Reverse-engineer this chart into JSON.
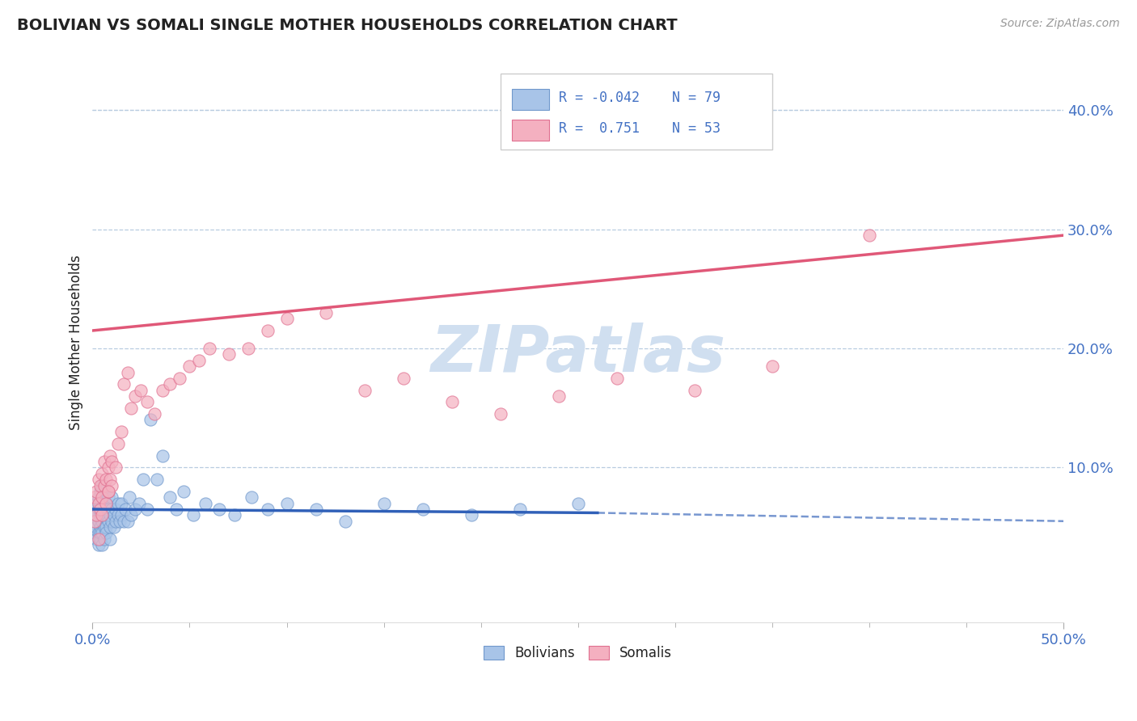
{
  "title": "BOLIVIAN VS SOMALI SINGLE MOTHER HOUSEHOLDS CORRELATION CHART",
  "source": "Source: ZipAtlas.com",
  "ylabel": "Single Mother Households",
  "xlim": [
    0.0,
    0.5
  ],
  "ylim": [
    -0.03,
    0.44
  ],
  "xtick_positions": [
    0.0,
    0.5
  ],
  "xtick_labels": [
    "0.0%",
    "50.0%"
  ],
  "yticks_right": [
    0.1,
    0.2,
    0.3,
    0.4
  ],
  "bolivian_R": -0.042,
  "bolivian_N": 79,
  "somali_R": 0.751,
  "somali_N": 53,
  "bolivian_color": "#a8c4e8",
  "somali_color": "#f4b0c0",
  "bolivian_edge_color": "#7098cc",
  "somali_edge_color": "#e07090",
  "bolivian_line_color": "#3060b8",
  "somali_line_color": "#e05878",
  "background_color": "#ffffff",
  "grid_color": "#b8cce0",
  "title_color": "#222222",
  "axis_label_color": "#222222",
  "tick_label_color": "#4472c4",
  "legend_r_color": "#4472c4",
  "watermark_color": "#d0dff0",
  "bolivian_x": [
    0.001,
    0.001,
    0.001,
    0.002,
    0.002,
    0.002,
    0.002,
    0.003,
    0.003,
    0.003,
    0.003,
    0.003,
    0.004,
    0.004,
    0.004,
    0.004,
    0.004,
    0.004,
    0.005,
    0.005,
    0.005,
    0.005,
    0.005,
    0.005,
    0.006,
    0.006,
    0.006,
    0.006,
    0.007,
    0.007,
    0.007,
    0.007,
    0.008,
    0.008,
    0.008,
    0.009,
    0.009,
    0.009,
    0.01,
    0.01,
    0.01,
    0.011,
    0.011,
    0.012,
    0.012,
    0.013,
    0.013,
    0.014,
    0.015,
    0.015,
    0.016,
    0.017,
    0.018,
    0.019,
    0.02,
    0.022,
    0.024,
    0.026,
    0.028,
    0.03,
    0.033,
    0.036,
    0.04,
    0.043,
    0.047,
    0.052,
    0.058,
    0.065,
    0.073,
    0.082,
    0.09,
    0.1,
    0.115,
    0.13,
    0.15,
    0.17,
    0.195,
    0.22,
    0.25
  ],
  "bolivian_y": [
    0.055,
    0.045,
    0.065,
    0.05,
    0.04,
    0.06,
    0.07,
    0.045,
    0.055,
    0.065,
    0.035,
    0.075,
    0.05,
    0.06,
    0.04,
    0.07,
    0.08,
    0.045,
    0.055,
    0.065,
    0.045,
    0.075,
    0.035,
    0.085,
    0.05,
    0.065,
    0.04,
    0.075,
    0.06,
    0.05,
    0.07,
    0.045,
    0.055,
    0.065,
    0.075,
    0.05,
    0.06,
    0.04,
    0.055,
    0.065,
    0.075,
    0.05,
    0.06,
    0.055,
    0.065,
    0.06,
    0.07,
    0.055,
    0.06,
    0.07,
    0.055,
    0.065,
    0.055,
    0.075,
    0.06,
    0.065,
    0.07,
    0.09,
    0.065,
    0.14,
    0.09,
    0.11,
    0.075,
    0.065,
    0.08,
    0.06,
    0.07,
    0.065,
    0.06,
    0.075,
    0.065,
    0.07,
    0.065,
    0.055,
    0.07,
    0.065,
    0.06,
    0.065,
    0.07
  ],
  "bolivian_line_x0": 0.0,
  "bolivian_line_x_solid_end": 0.26,
  "bolivian_line_x1": 0.5,
  "bolivian_line_y0": 0.065,
  "bolivian_line_y_solid_end": 0.062,
  "bolivian_line_y1": 0.055,
  "somali_x": [
    0.001,
    0.001,
    0.002,
    0.002,
    0.003,
    0.003,
    0.004,
    0.004,
    0.005,
    0.005,
    0.006,
    0.006,
    0.007,
    0.007,
    0.008,
    0.008,
    0.009,
    0.009,
    0.01,
    0.01,
    0.012,
    0.013,
    0.015,
    0.016,
    0.018,
    0.02,
    0.022,
    0.025,
    0.028,
    0.032,
    0.036,
    0.04,
    0.045,
    0.05,
    0.055,
    0.06,
    0.07,
    0.08,
    0.09,
    0.1,
    0.12,
    0.14,
    0.16,
    0.185,
    0.21,
    0.24,
    0.27,
    0.31,
    0.35,
    0.4,
    0.003,
    0.005,
    0.008
  ],
  "somali_y": [
    0.055,
    0.075,
    0.06,
    0.08,
    0.07,
    0.09,
    0.065,
    0.085,
    0.075,
    0.095,
    0.085,
    0.105,
    0.07,
    0.09,
    0.08,
    0.1,
    0.09,
    0.11,
    0.085,
    0.105,
    0.1,
    0.12,
    0.13,
    0.17,
    0.18,
    0.15,
    0.16,
    0.165,
    0.155,
    0.145,
    0.165,
    0.17,
    0.175,
    0.185,
    0.19,
    0.2,
    0.195,
    0.2,
    0.215,
    0.225,
    0.23,
    0.165,
    0.175,
    0.155,
    0.145,
    0.16,
    0.175,
    0.165,
    0.185,
    0.295,
    0.04,
    0.06,
    0.08
  ],
  "somali_line_x0": 0.0,
  "somali_line_x1": 0.5,
  "somali_line_y0": 0.215,
  "somali_line_y1": 0.295
}
